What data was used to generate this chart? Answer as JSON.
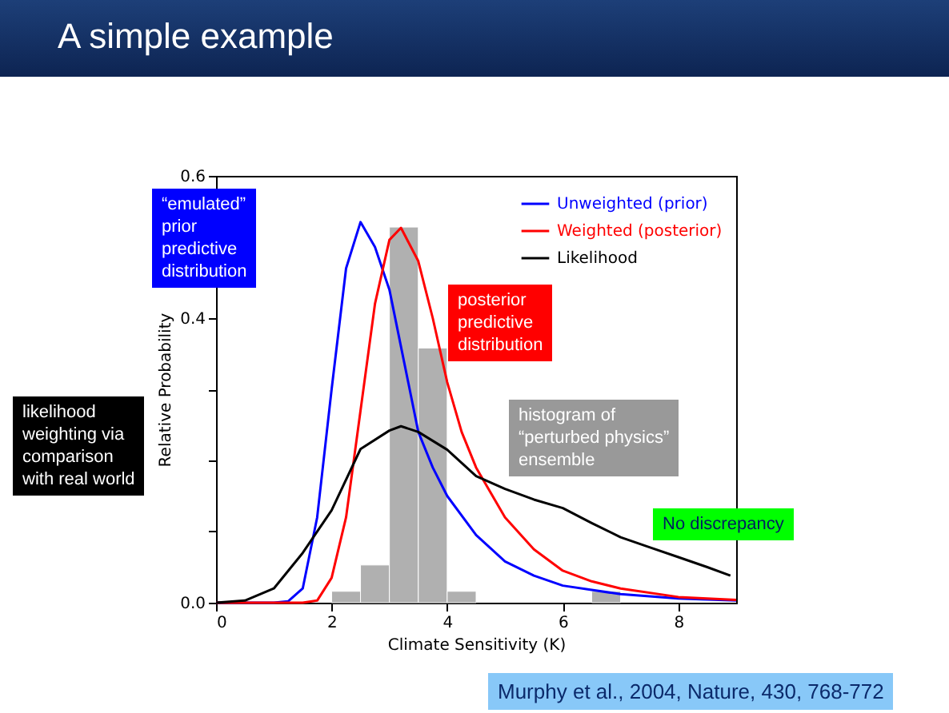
{
  "chart_data": {
    "type": "histogram",
    "title": "A simple example",
    "xlabel": "Climate Sensitivity (K)",
    "ylabel": "Relative Probability",
    "bins": [
      2,
      2.5,
      3,
      3.5,
      4,
      4.5,
      5,
      5.5,
      6,
      6.5,
      7
    ],
    "values": [
      0.016,
      0.053,
      0.528,
      0.358,
      0.016,
      0,
      0,
      0,
      0,
      0.016
    ],
    "color": "#b0b0b0",
    "series": [
      {
        "name": "Unweighted (prior)",
        "type": "line",
        "color": "#0000ff",
        "x": [
          0,
          1,
          1.25,
          1.5,
          1.75,
          2,
          2.25,
          2.5,
          2.75,
          3,
          3.25,
          3.5,
          3.75,
          4,
          4.5,
          5,
          5.5,
          6,
          7,
          8,
          9
        ],
        "values": [
          0,
          0,
          0.002,
          0.02,
          0.12,
          0.3,
          0.47,
          0.535,
          0.5,
          0.44,
          0.34,
          0.24,
          0.19,
          0.15,
          0.095,
          0.058,
          0.038,
          0.024,
          0.012,
          0.006,
          0.003
        ]
      },
      {
        "name": "Weighted (posterior)",
        "type": "line",
        "color": "#ff0000",
        "x": [
          0,
          1.5,
          1.75,
          2,
          2.25,
          2.5,
          2.75,
          3,
          3.2,
          3.5,
          3.75,
          4,
          4.25,
          4.5,
          5,
          5.5,
          6,
          6.5,
          7,
          8,
          9
        ],
        "values": [
          0,
          0,
          0.003,
          0.035,
          0.12,
          0.27,
          0.42,
          0.51,
          0.527,
          0.48,
          0.4,
          0.31,
          0.24,
          0.19,
          0.12,
          0.075,
          0.045,
          0.03,
          0.02,
          0.008,
          0.004
        ]
      },
      {
        "name": "Likelihood",
        "type": "line",
        "color": "#000000",
        "x": [
          0,
          0.5,
          1,
          1.5,
          2,
          2.5,
          3,
          3.2,
          3.5,
          4,
          4.5,
          5,
          5.5,
          6,
          6.5,
          7,
          7.5,
          8,
          8.5,
          8.9
        ],
        "values": [
          0,
          0.003,
          0.02,
          0.07,
          0.13,
          0.216,
          0.242,
          0.248,
          0.24,
          0.215,
          0.178,
          0.16,
          0.145,
          0.133,
          0.112,
          0.092,
          0.078,
          0.064,
          0.05,
          0.038
        ]
      }
    ],
    "xlim": [
      0,
      9
    ],
    "xticks": [
      0,
      2,
      4,
      6,
      8
    ],
    "ylim": [
      0,
      0.6
    ],
    "yticks": [
      {
        "value": 0,
        "label": "0.0"
      },
      {
        "value": 0.1,
        "label": null
      },
      {
        "value": 0.2,
        "label": null
      },
      {
        "value": 0.3,
        "label": null
      },
      {
        "value": 0.4,
        "label": "0.4"
      },
      {
        "value": 0.5,
        "label": null
      },
      {
        "value": 0.6,
        "label": "0.6"
      }
    ],
    "legend": "top right",
    "annotations": [
      "“emulated”\nprior\npredictive\ndistribution",
      "posterior\npredictive\ndistribution",
      "likelihood\nweighting via\ncomparison\nwith real world",
      "histogram of\n“perturbed physics”\nensemble",
      "No discrepancy",
      "Murphy et al., 2004, Nature, 430, 768-772"
    ]
  }
}
